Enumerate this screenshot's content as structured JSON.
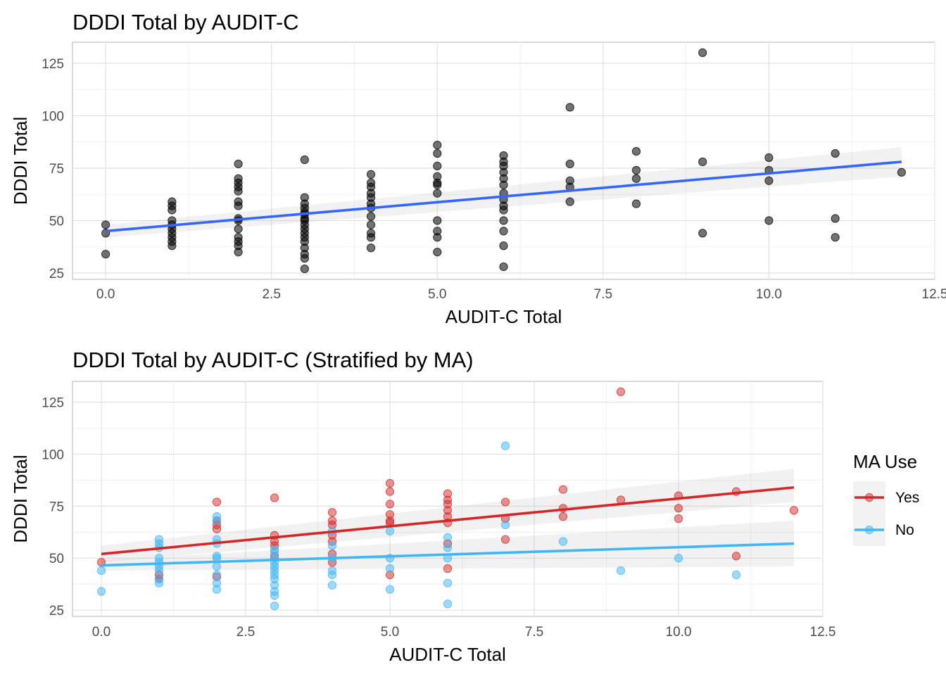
{
  "chart_data": [
    {
      "type": "scatter",
      "title": "DDDI Total by AUDIT-C",
      "xlabel": "AUDIT-C Total",
      "ylabel": "DDDI Total",
      "xlim": [
        -0.5,
        12.5
      ],
      "ylim": [
        22,
        135
      ],
      "xticks": [
        0.0,
        2.5,
        5.0,
        7.5,
        10.0,
        12.5
      ],
      "xtick_labels": [
        "0.0",
        "2.5",
        "5.0",
        "7.5",
        "10.0",
        "12.5"
      ],
      "yticks": [
        25,
        50,
        75,
        100,
        125
      ],
      "ytick_labels": [
        "25",
        "50",
        "75",
        "100",
        "125"
      ],
      "grid": true,
      "series": [
        {
          "color": "#000000",
          "points": [
            [
              0,
              48
            ],
            [
              0,
              44
            ],
            [
              0,
              34
            ],
            [
              1,
              59
            ],
            [
              1,
              57
            ],
            [
              1,
              55
            ],
            [
              1,
              50
            ],
            [
              1,
              48
            ],
            [
              1,
              46
            ],
            [
              1,
              44
            ],
            [
              1,
              42
            ],
            [
              1,
              40
            ],
            [
              1,
              38
            ],
            [
              2,
              77
            ],
            [
              2,
              70
            ],
            [
              2,
              68
            ],
            [
              2,
              66
            ],
            [
              2,
              64
            ],
            [
              2,
              59
            ],
            [
              2,
              57
            ],
            [
              2,
              51
            ],
            [
              2,
              50
            ],
            [
              2,
              46
            ],
            [
              2,
              42
            ],
            [
              2,
              40
            ],
            [
              2,
              38
            ],
            [
              2,
              35
            ],
            [
              3,
              79
            ],
            [
              3,
              61
            ],
            [
              3,
              58
            ],
            [
              3,
              56
            ],
            [
              3,
              54
            ],
            [
              3,
              53
            ],
            [
              3,
              51
            ],
            [
              3,
              50
            ],
            [
              3,
              48
            ],
            [
              3,
              46
            ],
            [
              3,
              44
            ],
            [
              3,
              42
            ],
            [
              3,
              40
            ],
            [
              3,
              37
            ],
            [
              3,
              34
            ],
            [
              3,
              32
            ],
            [
              3,
              27
            ],
            [
              4,
              72
            ],
            [
              4,
              68
            ],
            [
              4,
              66
            ],
            [
              4,
              63
            ],
            [
              4,
              61
            ],
            [
              4,
              58
            ],
            [
              4,
              56
            ],
            [
              4,
              52
            ],
            [
              4,
              48
            ],
            [
              4,
              44
            ],
            [
              4,
              42
            ],
            [
              4,
              37
            ],
            [
              5,
              86
            ],
            [
              5,
              82
            ],
            [
              5,
              76
            ],
            [
              5,
              71
            ],
            [
              5,
              68
            ],
            [
              5,
              67
            ],
            [
              5,
              63
            ],
            [
              5,
              50
            ],
            [
              5,
              45
            ],
            [
              5,
              42
            ],
            [
              5,
              35
            ],
            [
              6,
              81
            ],
            [
              6,
              78
            ],
            [
              6,
              76
            ],
            [
              6,
              73
            ],
            [
              6,
              70
            ],
            [
              6,
              67
            ],
            [
              6,
              63
            ],
            [
              6,
              60
            ],
            [
              6,
              57
            ],
            [
              6,
              55
            ],
            [
              6,
              50
            ],
            [
              6,
              45
            ],
            [
              6,
              38
            ],
            [
              6,
              28
            ],
            [
              7,
              104
            ],
            [
              7,
              77
            ],
            [
              7,
              69
            ],
            [
              7,
              66
            ],
            [
              7,
              59
            ],
            [
              8,
              83
            ],
            [
              8,
              74
            ],
            [
              8,
              70
            ],
            [
              8,
              58
            ],
            [
              9,
              130
            ],
            [
              9,
              78
            ],
            [
              9,
              44
            ],
            [
              10,
              80
            ],
            [
              10,
              74
            ],
            [
              10,
              69
            ],
            [
              10,
              50
            ],
            [
              11,
              82
            ],
            [
              11,
              51
            ],
            [
              11,
              42
            ],
            [
              12,
              73
            ]
          ]
        }
      ],
      "fit": {
        "color": "#3366ff",
        "x": [
          0,
          12
        ],
        "y": [
          45,
          78
        ],
        "band_start": [
          42,
          48
        ],
        "band_end": [
          71,
          85
        ]
      }
    },
    {
      "type": "scatter",
      "title": "DDDI Total by AUDIT-C (Stratified by MA)",
      "xlabel": "AUDIT-C Total",
      "ylabel": "DDDI Total",
      "xlim": [
        -0.5,
        12.5
      ],
      "ylim": [
        22,
        135
      ],
      "xticks": [
        0.0,
        2.5,
        5.0,
        7.5,
        10.0,
        12.5
      ],
      "xtick_labels": [
        "0.0",
        "2.5",
        "5.0",
        "7.5",
        "10.0",
        "12.5"
      ],
      "yticks": [
        25,
        50,
        75,
        100,
        125
      ],
      "ytick_labels": [
        "25",
        "50",
        "75",
        "100",
        "125"
      ],
      "grid": true,
      "legend": {
        "title": "MA Use",
        "placement": "right"
      },
      "series": [
        {
          "name": "Yes",
          "color": "#d62728",
          "points": [
            [
              0,
              48
            ],
            [
              1,
              42
            ],
            [
              1,
              40
            ],
            [
              2,
              77
            ],
            [
              2,
              68
            ],
            [
              2,
              66
            ],
            [
              2,
              64
            ],
            [
              2,
              41
            ],
            [
              3,
              79
            ],
            [
              3,
              61
            ],
            [
              3,
              58
            ],
            [
              3,
              56
            ],
            [
              3,
              51
            ],
            [
              4,
              72
            ],
            [
              4,
              68
            ],
            [
              4,
              66
            ],
            [
              4,
              61
            ],
            [
              4,
              58
            ],
            [
              4,
              52
            ],
            [
              4,
              48
            ],
            [
              5,
              86
            ],
            [
              5,
              82
            ],
            [
              5,
              76
            ],
            [
              5,
              71
            ],
            [
              5,
              68
            ],
            [
              5,
              67
            ],
            [
              5,
              42
            ],
            [
              6,
              81
            ],
            [
              6,
              78
            ],
            [
              6,
              76
            ],
            [
              6,
              73
            ],
            [
              6,
              70
            ],
            [
              6,
              67
            ],
            [
              6,
              57
            ],
            [
              6,
              45
            ],
            [
              7,
              77
            ],
            [
              7,
              69
            ],
            [
              7,
              59
            ],
            [
              8,
              83
            ],
            [
              8,
              74
            ],
            [
              8,
              70
            ],
            [
              9,
              130
            ],
            [
              9,
              78
            ],
            [
              10,
              80
            ],
            [
              10,
              74
            ],
            [
              10,
              69
            ],
            [
              11,
              82
            ],
            [
              11,
              51
            ],
            [
              12,
              73
            ]
          ]
        },
        {
          "name": "No",
          "color": "#3fb6f5",
          "points": [
            [
              0,
              44
            ],
            [
              0,
              34
            ],
            [
              1,
              59
            ],
            [
              1,
              57
            ],
            [
              1,
              55
            ],
            [
              1,
              50
            ],
            [
              1,
              48
            ],
            [
              1,
              46
            ],
            [
              1,
              44
            ],
            [
              1,
              40
            ],
            [
              1,
              38
            ],
            [
              2,
              70
            ],
            [
              2,
              68
            ],
            [
              2,
              59
            ],
            [
              2,
              57
            ],
            [
              2,
              51
            ],
            [
              2,
              50
            ],
            [
              2,
              46
            ],
            [
              2,
              42
            ],
            [
              2,
              38
            ],
            [
              2,
              35
            ],
            [
              3,
              54
            ],
            [
              3,
              53
            ],
            [
              3,
              50
            ],
            [
              3,
              48
            ],
            [
              3,
              46
            ],
            [
              3,
              44
            ],
            [
              3,
              42
            ],
            [
              3,
              40
            ],
            [
              3,
              37
            ],
            [
              3,
              34
            ],
            [
              3,
              32
            ],
            [
              3,
              27
            ],
            [
              4,
              63
            ],
            [
              4,
              56
            ],
            [
              4,
              50
            ],
            [
              4,
              44
            ],
            [
              4,
              42
            ],
            [
              4,
              37
            ],
            [
              5,
              63
            ],
            [
              5,
              50
            ],
            [
              5,
              45
            ],
            [
              5,
              35
            ],
            [
              6,
              60
            ],
            [
              6,
              55
            ],
            [
              6,
              50
            ],
            [
              6,
              38
            ],
            [
              6,
              28
            ],
            [
              7,
              104
            ],
            [
              7,
              66
            ],
            [
              8,
              58
            ],
            [
              9,
              44
            ],
            [
              10,
              50
            ],
            [
              11,
              42
            ]
          ]
        }
      ],
      "fits": [
        {
          "series": "Yes",
          "color": "#d62728",
          "x": [
            0,
            12
          ],
          "y": [
            52,
            84
          ],
          "band_start": [
            48,
            56
          ],
          "band_end": [
            77,
            93
          ]
        },
        {
          "series": "No",
          "color": "#3fb6f5",
          "x": [
            0,
            12
          ],
          "y": [
            46.5,
            57
          ],
          "band_start": [
            44,
            49
          ],
          "band_end": [
            46,
            68
          ]
        }
      ]
    }
  ]
}
